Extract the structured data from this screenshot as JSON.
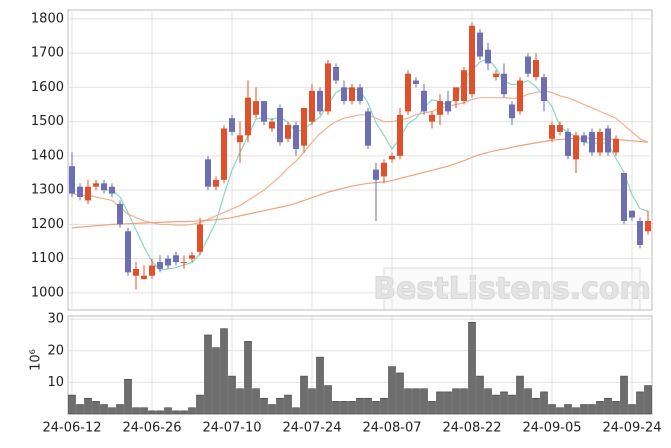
{
  "chart_data": {
    "type": "candlestick",
    "categories": [
      "24-06-12",
      null,
      null,
      null,
      null,
      null,
      null,
      null,
      null,
      null,
      "24-06-26",
      null,
      null,
      null,
      null,
      null,
      null,
      null,
      null,
      null,
      "24-07-10",
      null,
      null,
      null,
      null,
      null,
      null,
      null,
      null,
      null,
      "24-07-24",
      null,
      null,
      null,
      null,
      null,
      null,
      null,
      null,
      null,
      "24-08-07",
      null,
      null,
      null,
      null,
      null,
      null,
      null,
      null,
      null,
      "24-08-22",
      null,
      null,
      null,
      null,
      null,
      null,
      null,
      null,
      null,
      "24-09-05",
      null,
      null,
      null,
      null,
      null,
      null,
      null,
      null,
      null,
      "24-09-24",
      null,
      null
    ],
    "open": [
      1370,
      1310,
      1270,
      1310,
      1320,
      1310,
      1260,
      1180,
      1050,
      1040,
      1050,
      1090,
      1100,
      1110,
      1090,
      1100,
      1120,
      1390,
      1310,
      1330,
      1510,
      1440,
      1460,
      1520,
      1560,
      1480,
      1540,
      1450,
      1490,
      1430,
      1500,
      1590,
      1530,
      1660,
      1600,
      1560,
      1600,
      1530,
      1360,
      1340,
      1390,
      1400,
      1530,
      1620,
      1590,
      1500,
      1520,
      1560,
      1560,
      1560,
      1580,
      1760,
      1710,
      1630,
      1640,
      1550,
      1530,
      1690,
      1630,
      1630,
      1450,
      1470,
      1470,
      1390,
      1460,
      1470,
      1410,
      1480,
      1410,
      1350,
      1240,
      1210,
      1180
    ],
    "high": [
      1410,
      1320,
      1330,
      1330,
      1330,
      1320,
      1270,
      1190,
      1090,
      1080,
      1100,
      1110,
      1110,
      1120,
      1110,
      1120,
      1220,
      1400,
      1340,
      1490,
      1520,
      1500,
      1620,
      1600,
      1560,
      1510,
      1550,
      1500,
      1500,
      1540,
      1610,
      1600,
      1680,
      1670,
      1620,
      1610,
      1610,
      1540,
      1380,
      1390,
      1410,
      1540,
      1650,
      1630,
      1610,
      1530,
      1580,
      1590,
      1600,
      1660,
      1790,
      1770,
      1730,
      1650,
      1670,
      1560,
      1630,
      1700,
      1700,
      1640,
      1500,
      1500,
      1480,
      1470,
      1470,
      1480,
      1480,
      1490,
      1460,
      1350,
      1240,
      1220,
      1240
    ],
    "low": [
      1280,
      1270,
      1260,
      1300,
      1290,
      1280,
      1190,
      1050,
      1010,
      1040,
      1040,
      1060,
      1070,
      1080,
      1070,
      1090,
      1110,
      1300,
      1300,
      1320,
      1460,
      1380,
      1440,
      1510,
      1490,
      1470,
      1430,
      1440,
      1400,
      1410,
      1490,
      1520,
      1520,
      1610,
      1550,
      1550,
      1550,
      1420,
      1210,
      1320,
      1380,
      1390,
      1520,
      1600,
      1520,
      1480,
      1490,
      1520,
      1540,
      1550,
      1570,
      1680,
      1650,
      1620,
      1570,
      1490,
      1520,
      1630,
      1620,
      1530,
      1440,
      1460,
      1390,
      1350,
      1430,
      1400,
      1400,
      1400,
      1400,
      1200,
      1210,
      1130,
      1170
    ],
    "close": [
      1290,
      1280,
      1310,
      1320,
      1300,
      1290,
      1200,
      1060,
      1070,
      1050,
      1080,
      1070,
      1080,
      1090,
      1090,
      1110,
      1200,
      1310,
      1330,
      1480,
      1470,
      1460,
      1570,
      1560,
      1500,
      1500,
      1440,
      1490,
      1420,
      1540,
      1590,
      1530,
      1670,
      1620,
      1560,
      1600,
      1560,
      1430,
      1330,
      1380,
      1400,
      1520,
      1640,
      1610,
      1530,
      1520,
      1560,
      1530,
      1600,
      1650,
      1780,
      1690,
      1670,
      1640,
      1580,
      1510,
      1620,
      1640,
      1680,
      1560,
      1490,
      1490,
      1400,
      1460,
      1440,
      1410,
      1470,
      1410,
      1450,
      1210,
      1220,
      1140,
      1210
    ],
    "up_color": "#e0502a",
    "down_color": "#6e6eb4",
    "lines": [
      {
        "color": "#86d8c4",
        "values": [
          null,
          null,
          null,
          null,
          1300,
          1300,
          1280,
          1234,
          1184,
          1134,
          1092,
          1066,
          1070,
          1074,
          1082,
          1088,
          1114,
          1160,
          1208,
          1286,
          1358,
          1410,
          1458,
          1508,
          1512,
          1506,
          1514,
          1498,
          1470,
          1478,
          1496,
          1514,
          1550,
          1586,
          1596,
          1596,
          1592,
          1554,
          1496,
          1460,
          1420,
          1452,
          1494,
          1510,
          1540,
          1564,
          1558,
          1548,
          1572,
          1624,
          1650,
          1674,
          1684,
          1656,
          1618,
          1608,
          1610,
          1620,
          1602,
          1574,
          1544,
          1486,
          1468,
          1456,
          1440,
          1436,
          1438,
          1436,
          1392,
          1352,
          1286,
          1246,
          1238
        ]
      },
      {
        "color": "#f2b08e",
        "values": [
          1290,
          1285,
          1285,
          1280,
          1275,
          1270,
          1250,
          1230,
          1220,
          1210,
          1205,
          1200,
          1200,
          1198,
          1198,
          1200,
          1205,
          1215,
          1225,
          1235,
          1245,
          1255,
          1270,
          1285,
          1300,
          1320,
          1340,
          1365,
          1385,
          1410,
          1440,
          1465,
          1485,
          1500,
          1510,
          1515,
          1520,
          1520,
          1510,
          1500,
          1500,
          1505,
          1510,
          1520,
          1525,
          1530,
          1540,
          1545,
          1550,
          1555,
          1565,
          1570,
          1570,
          1570,
          1570,
          1568,
          1570,
          1580,
          1585,
          1590,
          1585,
          1575,
          1570,
          1560,
          1550,
          1540,
          1530,
          1520,
          1510,
          1490,
          1470,
          1450,
          1440
        ]
      },
      {
        "color": "#eea27c",
        "values": [
          1190,
          1192,
          1194,
          1196,
          1198,
          1200,
          1201,
          1202,
          1203,
          1204,
          1205,
          1206,
          1207,
          1208,
          1208,
          1209,
          1210,
          1212,
          1214,
          1216,
          1220,
          1225,
          1230,
          1235,
          1240,
          1245,
          1250,
          1255,
          1262,
          1270,
          1278,
          1286,
          1294,
          1300,
          1306,
          1312,
          1316,
          1320,
          1322,
          1324,
          1328,
          1334,
          1340,
          1346,
          1352,
          1358,
          1364,
          1370,
          1378,
          1386,
          1396,
          1404,
          1410,
          1416,
          1420,
          1425,
          1430,
          1434,
          1438,
          1442,
          1446,
          1448,
          1450,
          1452,
          1452,
          1452,
          1450,
          1449,
          1448,
          1446,
          1444,
          1442,
          1440
        ]
      }
    ],
    "ylim": [
      950,
      1826
    ],
    "yticks": [
      1000,
      1100,
      1200,
      1300,
      1400,
      1500,
      1600,
      1700,
      1800
    ],
    "volume": [
      6,
      3,
      5,
      4,
      3,
      2,
      3,
      11,
      2,
      2,
      1,
      1,
      2,
      1,
      1,
      2,
      6,
      25,
      21,
      27,
      12,
      8,
      23,
      8,
      5,
      3,
      5,
      6,
      2,
      12,
      8,
      18,
      9,
      4,
      4,
      4,
      5,
      5,
      4,
      5,
      15,
      13,
      8,
      8,
      8,
      4,
      7,
      7,
      8,
      8,
      29,
      12,
      8,
      6,
      7,
      6,
      12,
      8,
      5,
      7,
      3,
      2,
      3,
      2,
      3,
      3,
      4,
      5,
      4,
      12,
      3,
      7,
      9
    ],
    "volume_color": "#6e6e6e",
    "volume_ylim": [
      0,
      31
    ],
    "volume_yticks": [
      10,
      20,
      30
    ],
    "volume_unit": "10⁶",
    "watermark": "BestListens.com",
    "grid": true
  }
}
